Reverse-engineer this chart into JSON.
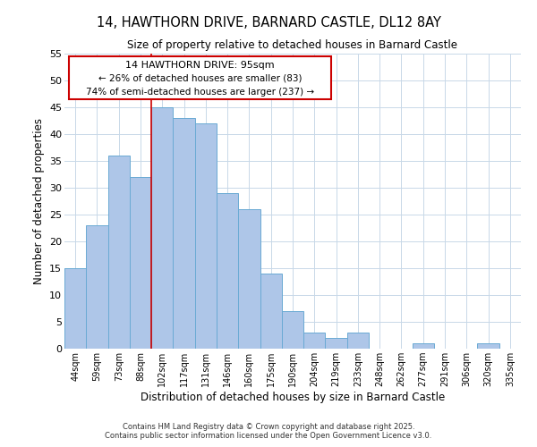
{
  "title1": "14, HAWTHORN DRIVE, BARNARD CASTLE, DL12 8AY",
  "title2": "Size of property relative to detached houses in Barnard Castle",
  "xlabel": "Distribution of detached houses by size in Barnard Castle",
  "ylabel": "Number of detached properties",
  "categories": [
    "44sqm",
    "59sqm",
    "73sqm",
    "88sqm",
    "102sqm",
    "117sqm",
    "131sqm",
    "146sqm",
    "160sqm",
    "175sqm",
    "190sqm",
    "204sqm",
    "219sqm",
    "233sqm",
    "248sqm",
    "262sqm",
    "277sqm",
    "291sqm",
    "306sqm",
    "320sqm",
    "335sqm"
  ],
  "values": [
    15,
    23,
    36,
    32,
    45,
    43,
    42,
    29,
    26,
    14,
    7,
    3,
    2,
    3,
    0,
    0,
    1,
    0,
    0,
    1,
    0
  ],
  "bar_color": "#aec6e8",
  "bar_edge_color": "#6aaad4",
  "vline_color": "#cc0000",
  "ylim": [
    0,
    55
  ],
  "yticks": [
    0,
    5,
    10,
    15,
    20,
    25,
    30,
    35,
    40,
    45,
    50,
    55
  ],
  "annotation_title": "14 HAWTHORN DRIVE: 95sqm",
  "annotation_line1": "← 26% of detached houses are smaller (83)",
  "annotation_line2": "74% of semi-detached houses are larger (237) →",
  "annotation_box_color": "#ffffff",
  "annotation_box_edge": "#cc0000",
  "footer1": "Contains HM Land Registry data © Crown copyright and database right 2025.",
  "footer2": "Contains public sector information licensed under the Open Government Licence v3.0.",
  "background_color": "#ffffff",
  "grid_color": "#c8d8e8",
  "title1_fontsize": 10,
  "title2_fontsize": 8.5
}
